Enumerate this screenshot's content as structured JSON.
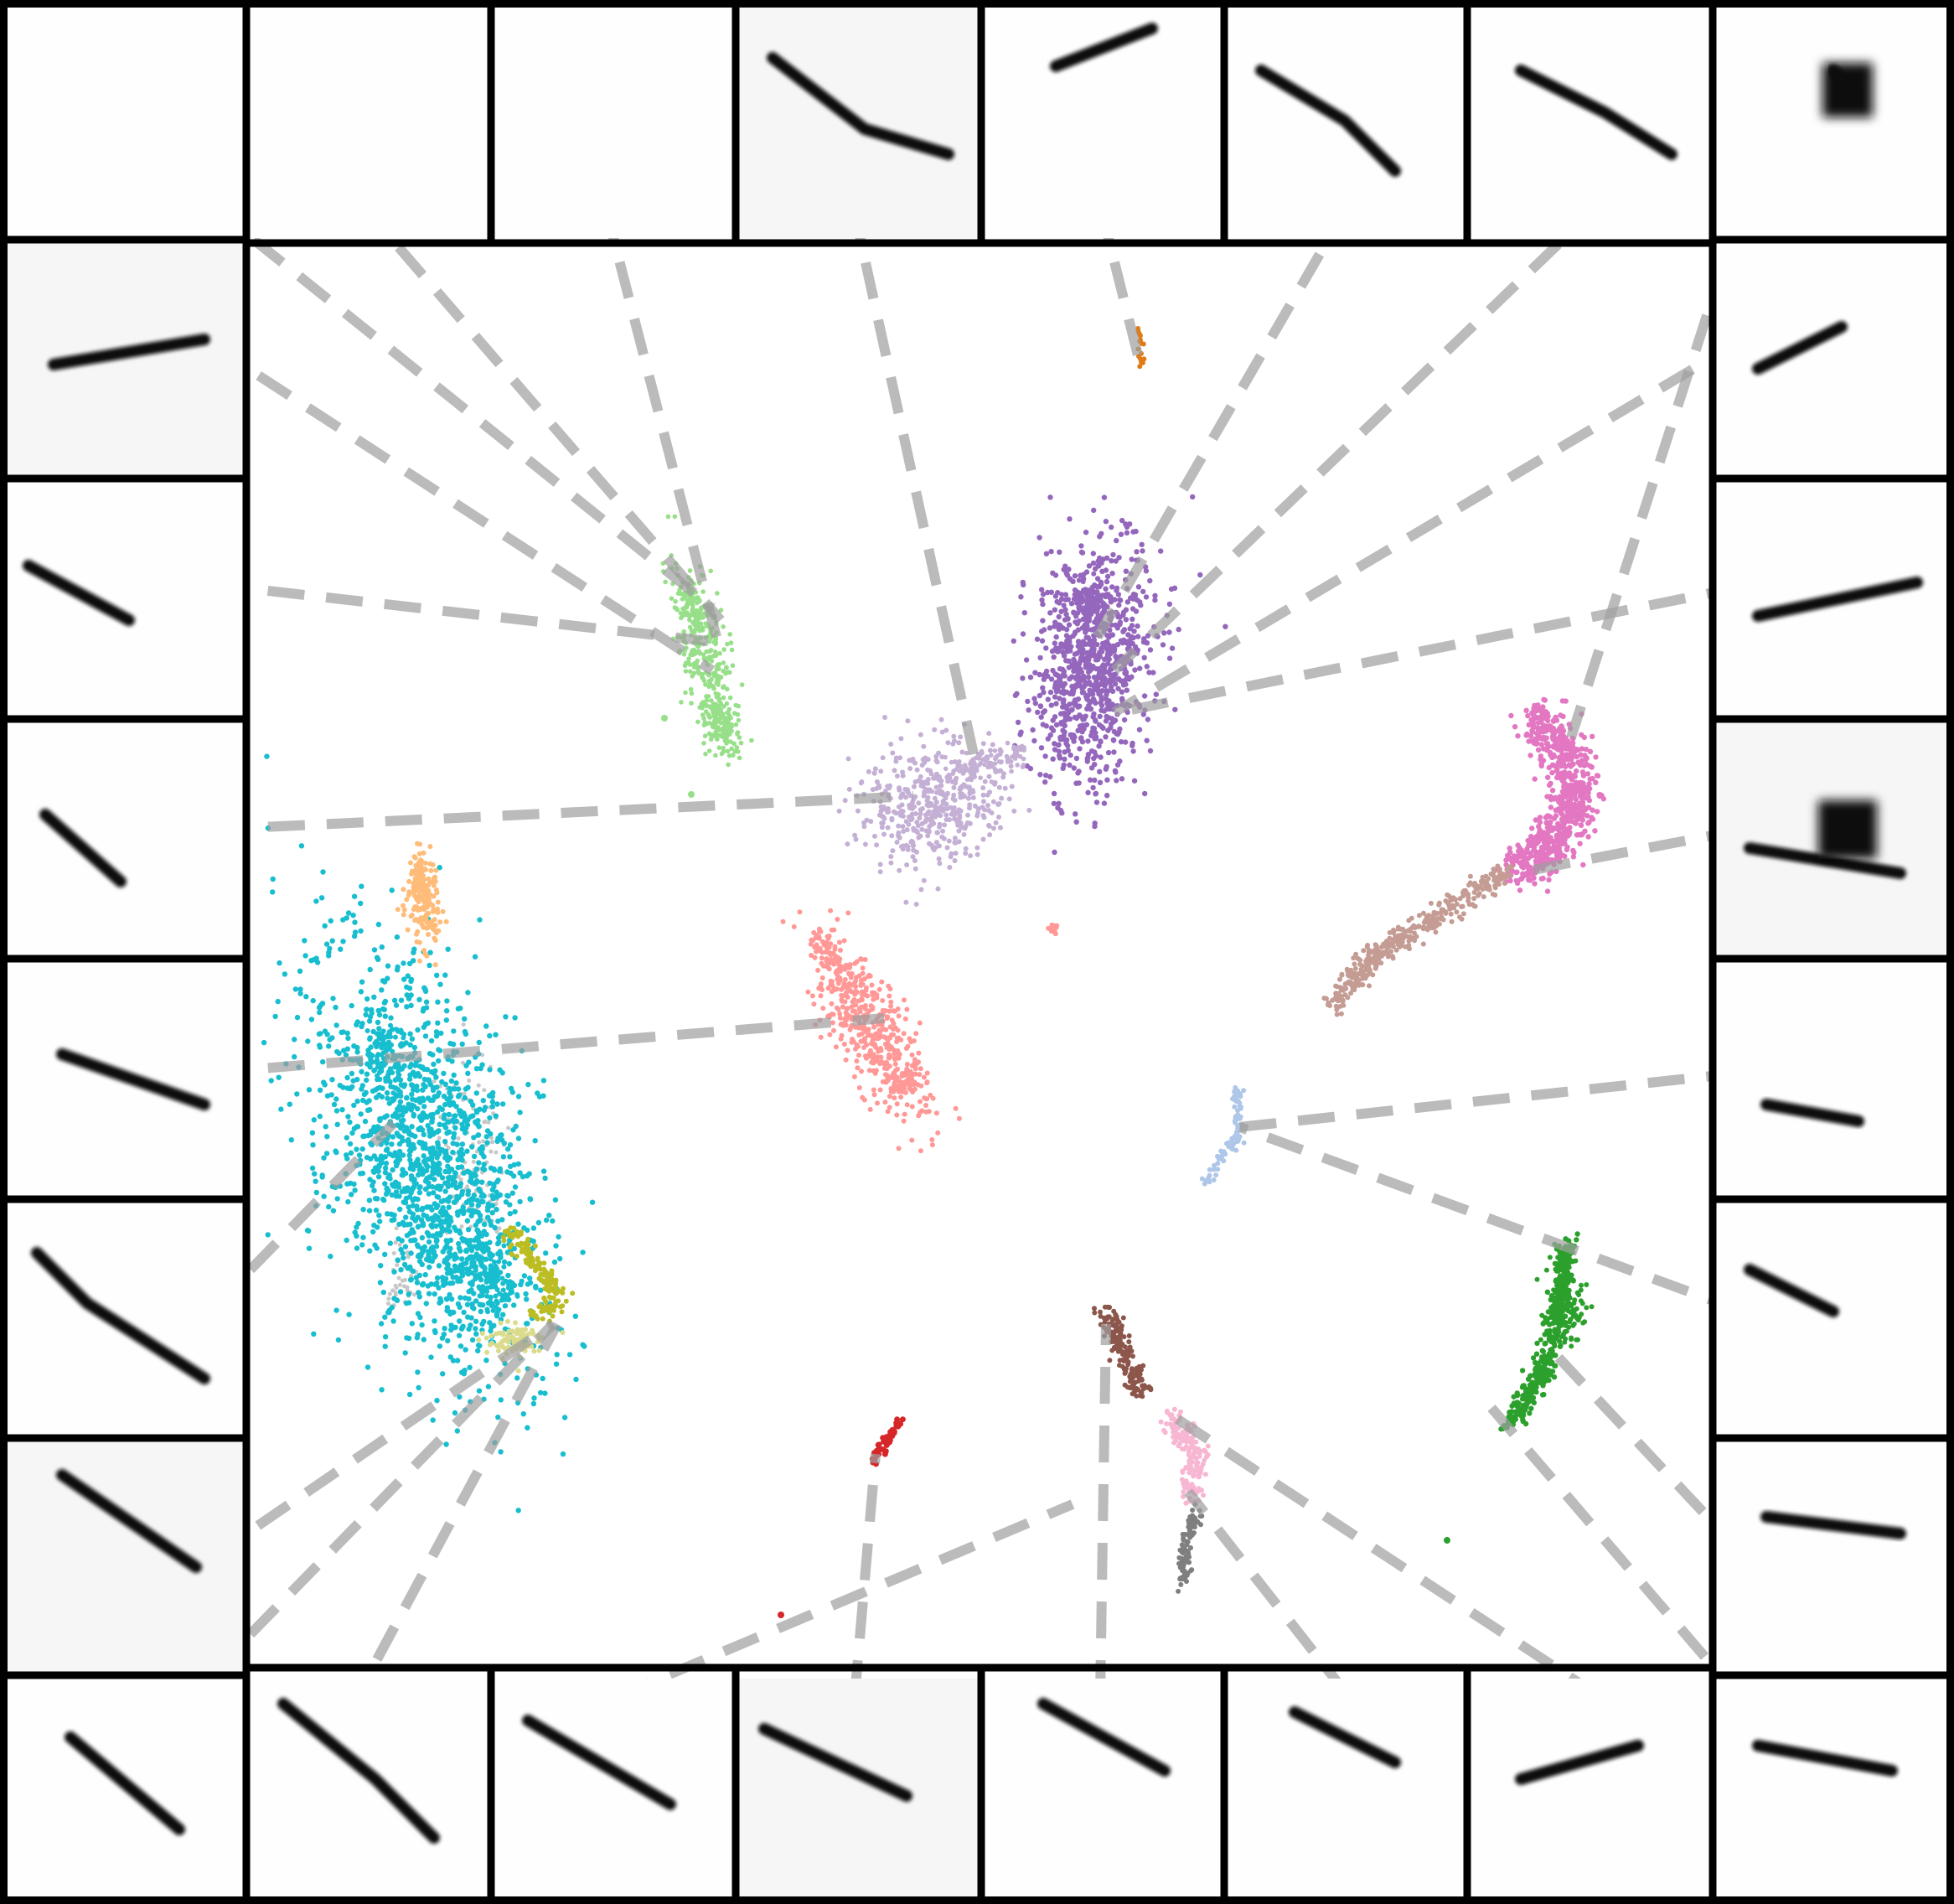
{
  "figure": {
    "description_type": "embedding-scatter-with-thumbnail-border",
    "border_tiles_per_side": 8,
    "connector_style": "dashed-gray",
    "clusters": [
      {
        "name": "cluster-light-green",
        "color": "#98df8a"
      },
      {
        "name": "cluster-purple",
        "color": "#9467bd"
      },
      {
        "name": "cluster-orange",
        "color": "#e07b16"
      },
      {
        "name": "cluster-lavender",
        "color": "#c5b0d5"
      },
      {
        "name": "cluster-pink",
        "color": "#e377c2"
      },
      {
        "name": "cluster-rosybrown",
        "color": "#c49c94"
      },
      {
        "name": "cluster-peach",
        "color": "#ffbb78"
      },
      {
        "name": "cluster-salmon",
        "color": "#ff9896"
      },
      {
        "name": "cluster-cyan",
        "color": "#17becf"
      },
      {
        "name": "cluster-olive",
        "color": "#bcbd22"
      },
      {
        "name": "cluster-khaki",
        "color": "#dbdb8d"
      },
      {
        "name": "cluster-light-blue",
        "color": "#aec7e8"
      },
      {
        "name": "cluster-green",
        "color": "#2ca02c"
      },
      {
        "name": "cluster-brown",
        "color": "#8c564b"
      },
      {
        "name": "cluster-light-pink",
        "color": "#f7b6d2"
      },
      {
        "name": "cluster-gray",
        "color": "#7f7f7f"
      },
      {
        "name": "cluster-red",
        "color": "#d62728"
      },
      {
        "name": "cluster-silver",
        "color": "#c7c7c7"
      }
    ]
  }
}
